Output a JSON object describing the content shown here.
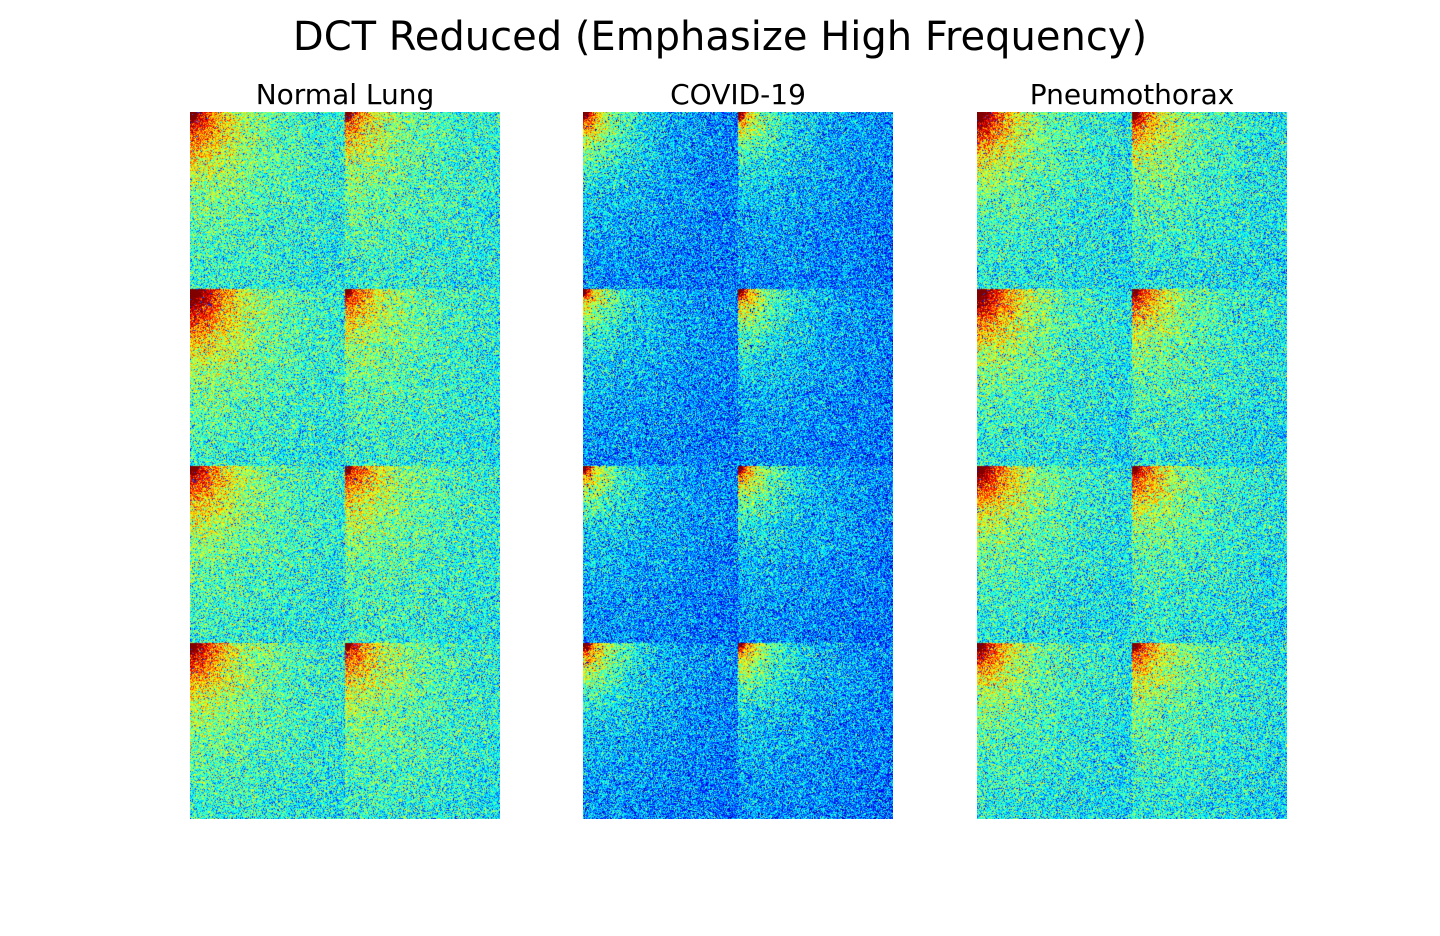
{
  "title": "DCT Reduced (Emphasize High Frequency)",
  "chart_data": {
    "type": "heatmap",
    "title": "DCT Reduced (Emphasize High Frequency)",
    "colormap": "jet",
    "grid": false,
    "axes": "off",
    "layout": {
      "rows": 4,
      "cols": 2
    },
    "panels": [
      {
        "title": "Normal Lung",
        "background_level": 0.44,
        "tiles": [
          {
            "corner_strength": 0.55,
            "corner_spread": 0.55
          },
          {
            "corner_strength": 0.4,
            "corner_spread": 0.45
          },
          {
            "corner_strength": 0.75,
            "corner_spread": 0.6
          },
          {
            "corner_strength": 0.45,
            "corner_spread": 0.45
          },
          {
            "corner_strength": 0.55,
            "corner_spread": 0.55
          },
          {
            "corner_strength": 0.45,
            "corner_spread": 0.5
          },
          {
            "corner_strength": 0.6,
            "corner_spread": 0.55
          },
          {
            "corner_strength": 0.45,
            "corner_spread": 0.5
          }
        ]
      },
      {
        "title": "COVID-19",
        "background_level": 0.3,
        "tiles": [
          {
            "corner_strength": 0.55,
            "corner_spread": 0.45
          },
          {
            "corner_strength": 0.45,
            "corner_spread": 0.4
          },
          {
            "corner_strength": 0.45,
            "corner_spread": 0.4
          },
          {
            "corner_strength": 0.5,
            "corner_spread": 0.45
          },
          {
            "corner_strength": 0.45,
            "corner_spread": 0.4
          },
          {
            "corner_strength": 0.5,
            "corner_spread": 0.45
          },
          {
            "corner_strength": 0.55,
            "corner_spread": 0.45
          },
          {
            "corner_strength": 0.45,
            "corner_spread": 0.45
          }
        ]
      },
      {
        "title": "Pneumothorax",
        "background_level": 0.42,
        "tiles": [
          {
            "corner_strength": 0.7,
            "corner_spread": 0.5
          },
          {
            "corner_strength": 0.5,
            "corner_spread": 0.45
          },
          {
            "corner_strength": 0.75,
            "corner_spread": 0.55
          },
          {
            "corner_strength": 0.5,
            "corner_spread": 0.45
          },
          {
            "corner_strength": 0.7,
            "corner_spread": 0.5
          },
          {
            "corner_strength": 0.55,
            "corner_spread": 0.45
          },
          {
            "corner_strength": 0.6,
            "corner_spread": 0.45
          },
          {
            "corner_strength": 0.5,
            "corner_spread": 0.45
          }
        ]
      }
    ]
  }
}
